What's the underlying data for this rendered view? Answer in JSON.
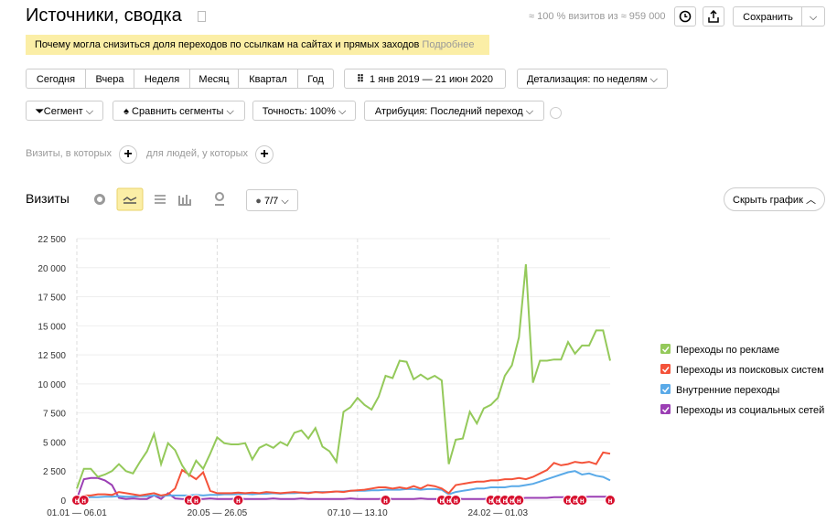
{
  "header": {
    "title": "Источники, сводка",
    "sample_info": "≈ 100 % визитов из ≈ 959 000",
    "save": "Сохранить"
  },
  "banner": {
    "text": "Почему могла снизиться доля переходов по ссылкам на сайтах и прямых заходов",
    "link": "Подробнее"
  },
  "periods": [
    "Сегодня",
    "Вчера",
    "Неделя",
    "Месяц",
    "Квартал",
    "Год"
  ],
  "date_range": "1 янв 2019 — 21 июн 2020",
  "detail": "Детализация: по неделям",
  "filters": [
    "Сегмент",
    "Сравнить сегменты",
    "Точность: 100%",
    "Атрибуция: Последний переход"
  ],
  "conditions": [
    "Визиты, в которых",
    "для людей, у которых"
  ],
  "section": {
    "title": "Визиты",
    "series_count": "7/7",
    "hide": "Скрыть график"
  },
  "chart_data": {
    "type": "line",
    "categories": [
      "01.01 — 06.01",
      null,
      null,
      null,
      null,
      null,
      null,
      null,
      null,
      null,
      null,
      null,
      null,
      null,
      null,
      null,
      null,
      null,
      null,
      null,
      "20.05 — 26.05",
      null,
      null,
      null,
      null,
      null,
      null,
      null,
      null,
      null,
      null,
      null,
      null,
      null,
      null,
      null,
      null,
      null,
      null,
      null,
      "07.10 — 13.10",
      null,
      null,
      null,
      null,
      null,
      null,
      null,
      null,
      null,
      null,
      null,
      null,
      null,
      null,
      null,
      null,
      null,
      null,
      null,
      "24.02 — 01.03",
      null,
      null,
      null,
      null,
      null,
      null,
      null,
      null,
      null,
      null,
      null,
      null,
      null,
      null,
      null,
      null
    ],
    "series": [
      {
        "name": "Переходы по рекламе",
        "color": "#94c95a",
        "values": [
          1000,
          2700,
          2700,
          2000,
          2200,
          2500,
          3100,
          2500,
          2300,
          3300,
          4200,
          5700,
          3100,
          4900,
          4300,
          3000,
          2100,
          3400,
          2700,
          4000,
          5400,
          4900,
          4800,
          4800,
          4900,
          3500,
          4500,
          4800,
          4500,
          5000,
          4700,
          5800,
          6000,
          5300,
          6200,
          4600,
          4200,
          3300,
          7600,
          8000,
          8800,
          8200,
          7800,
          8900,
          10700,
          10500,
          12000,
          11900,
          10400,
          10800,
          10400,
          10700,
          10300,
          3100,
          5200,
          5300,
          7600,
          6600,
          7900,
          8200,
          8800,
          10700,
          11600,
          14000,
          20300,
          10100,
          12000,
          12000,
          12100,
          12100,
          13600,
          12600,
          13300,
          13300,
          14600,
          14600,
          12000
        ]
      },
      {
        "name": "Переходы из поисковых систем",
        "color": "#f4533a",
        "values": [
          200,
          400,
          400,
          500,
          500,
          450,
          700,
          600,
          500,
          400,
          500,
          600,
          400,
          500,
          1000,
          2600,
          2200,
          1800,
          2400,
          800,
          600,
          600,
          600,
          650,
          600,
          650,
          600,
          700,
          650,
          600,
          650,
          700,
          650,
          600,
          700,
          650,
          700,
          750,
          700,
          800,
          850,
          900,
          1000,
          1100,
          1100,
          1000,
          1100,
          1000,
          1200,
          1000,
          1300,
          1200,
          1000,
          600,
          1300,
          1400,
          1500,
          1600,
          1600,
          1700,
          1700,
          1800,
          1800,
          1900,
          1800,
          2000,
          2300,
          2600,
          3200,
          3000,
          3100,
          3300,
          3200,
          3300,
          3100,
          4100,
          4000
        ]
      },
      {
        "name": "Внутренние переходы",
        "color": "#5aaae8",
        "values": [
          100,
          200,
          250,
          250,
          300,
          300,
          350,
          300,
          300,
          350,
          350,
          400,
          350,
          400,
          400,
          400,
          400,
          450,
          400,
          450,
          450,
          500,
          500,
          500,
          550,
          500,
          550,
          550,
          600,
          550,
          600,
          600,
          650,
          650,
          700,
          700,
          700,
          750,
          750,
          800,
          800,
          800,
          850,
          850,
          900,
          900,
          900,
          950,
          950,
          900,
          950,
          950,
          900,
          500,
          700,
          800,
          900,
          1000,
          1000,
          1100,
          1100,
          1100,
          1200,
          1200,
          1300,
          1400,
          1600,
          1800,
          2000,
          2200,
          2400,
          2500,
          2200,
          2300,
          2100,
          2000,
          1700
        ]
      },
      {
        "name": "Переходы из социальных сетей",
        "color": "#9b3fb4",
        "values": [
          100,
          1800,
          1900,
          1900,
          1700,
          1300,
          200,
          100,
          150,
          100,
          100,
          400,
          100,
          600,
          150,
          100,
          100,
          100,
          100,
          150,
          100,
          100,
          100,
          150,
          100,
          100,
          100,
          100,
          150,
          100,
          100,
          100,
          150,
          100,
          100,
          100,
          100,
          100,
          100,
          150,
          100,
          100,
          100,
          100,
          150,
          100,
          100,
          100,
          100,
          150,
          100,
          100,
          100,
          100,
          150,
          100,
          100,
          100,
          100,
          150,
          150,
          150,
          150,
          150,
          200,
          200,
          200,
          200,
          250,
          250,
          250,
          250,
          250,
          300,
          300,
          300,
          300
        ]
      }
    ],
    "ylim": [
      0,
      22500
    ],
    "yticks": [
      0,
      {
        "value": 2500,
        "label": "2 500"
      },
      {
        "value": 5000,
        "label": "5 000"
      },
      {
        "value": 7500,
        "label": "7 500"
      },
      {
        "value": 10000,
        "label": "10 000"
      },
      {
        "value": 12500,
        "label": "12 500"
      },
      {
        "value": 15000,
        "label": "15 000"
      },
      {
        "value": 17500,
        "label": "17 500"
      },
      {
        "value": 20000,
        "label": "20 000"
      },
      {
        "value": 22500,
        "label": "22 500"
      }
    ],
    "grid": true,
    "legend": "right",
    "annotations": [
      {
        "x": 0,
        "text": "н"
      },
      {
        "x": 1,
        "text": "н"
      },
      {
        "x": 16,
        "text": "н"
      },
      {
        "x": 17,
        "text": "н"
      },
      {
        "x": 23,
        "text": "н"
      },
      {
        "x": 44,
        "text": "н"
      },
      {
        "x": 52,
        "text": "н"
      },
      {
        "x": 53,
        "text": "н"
      },
      {
        "x": 54,
        "text": "н"
      },
      {
        "x": 59,
        "text": "н"
      },
      {
        "x": 60,
        "text": "н"
      },
      {
        "x": 61,
        "text": "н"
      },
      {
        "x": 62,
        "text": "н"
      },
      {
        "x": 63,
        "text": "н"
      },
      {
        "x": 70,
        "text": "н"
      },
      {
        "x": 71,
        "text": "н"
      },
      {
        "x": 72,
        "text": "н"
      },
      {
        "x": 76,
        "text": "н"
      }
    ]
  }
}
